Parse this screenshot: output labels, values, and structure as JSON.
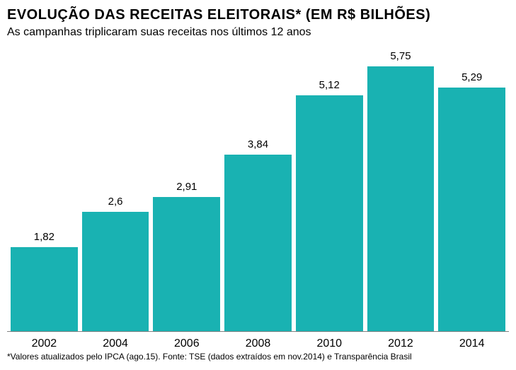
{
  "chart": {
    "type": "bar",
    "title": "EVOLUÇÃO DAS RECEITAS ELEITORAIS* (EM R$ BILHÕES)",
    "subtitle": "As campanhas triplicaram suas receitas nos últimos 12 anos",
    "footnote": "*Valores atualizados pelo IPCA (ago.15). Fonte: TSE (dados extraídos em nov.2014) e Transparência Brasil",
    "categories": [
      "2002",
      "2004",
      "2006",
      "2008",
      "2010",
      "2012",
      "2014"
    ],
    "values": [
      1.82,
      2.6,
      2.91,
      3.84,
      5.12,
      5.75,
      5.29
    ],
    "value_labels": [
      "1,82",
      "2,6",
      "2,91",
      "3,84",
      "5,12",
      "5,75",
      "5,29"
    ],
    "bar_color": "#19b2b2",
    "background_color": "#ffffff",
    "axis_line_color": "#808080",
    "ymax": 6.2,
    "title_fontsize": 20,
    "subtitle_fontsize": 16,
    "value_fontsize": 15,
    "xlabel_fontsize": 16,
    "footnote_fontsize": 12,
    "bar_width_ratio": 0.92
  }
}
